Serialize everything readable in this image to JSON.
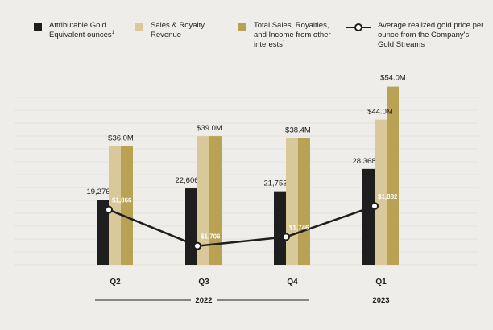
{
  "legend": {
    "gold_label": "Attributable Gold Equivalent ounces",
    "gold_note": "1",
    "sales_label": "Sales & Royalty Revenue",
    "total_label": "Total Sales, Royalties, and Income from other interests",
    "total_note": "1",
    "price_label": "Average realized gold price per ounce from the Company's Gold Streams"
  },
  "colors": {
    "gold_oz": "#1e1e1e",
    "sales": "#d9c99a",
    "total": "#b9a253",
    "line": "#1e1e1e",
    "grid": "#e3e1dc",
    "background": "#eeede9"
  },
  "chart_data": {
    "type": "bar",
    "categories": [
      "Q2",
      "Q3",
      "Q4",
      "Q1"
    ],
    "year_groups": [
      {
        "label": "2022",
        "span": [
          0,
          2
        ]
      },
      {
        "label": "2023",
        "span": [
          3,
          3
        ]
      }
    ],
    "series": [
      {
        "name": "Attributable Gold Equivalent ounces",
        "values": [
          19276,
          22606,
          21753,
          28368
        ],
        "labels": [
          "19,276oz",
          "22,606oz",
          "21,753oz",
          "28,368oz"
        ]
      },
      {
        "name": "Sales & Royalty Revenue",
        "values": [
          36.0,
          39.0,
          38.4,
          44.0
        ],
        "labels": [
          "$36.0M",
          "$39.0M",
          "$38.4M",
          "$44.0M"
        ]
      },
      {
        "name": "Total Sales, Royalties, and Income from other interests",
        "values": [
          36.0,
          39.0,
          38.4,
          54.0
        ],
        "labels": [
          "",
          "",
          "",
          "$54.0M"
        ]
      },
      {
        "name": "Average realized gold price per ounce from the Company's Gold Streams",
        "type": "line",
        "values": [
          1866,
          1706,
          1746,
          1882
        ],
        "labels": [
          "$1,866",
          "$1,706",
          "$1,746",
          "$1,882"
        ]
      }
    ]
  }
}
